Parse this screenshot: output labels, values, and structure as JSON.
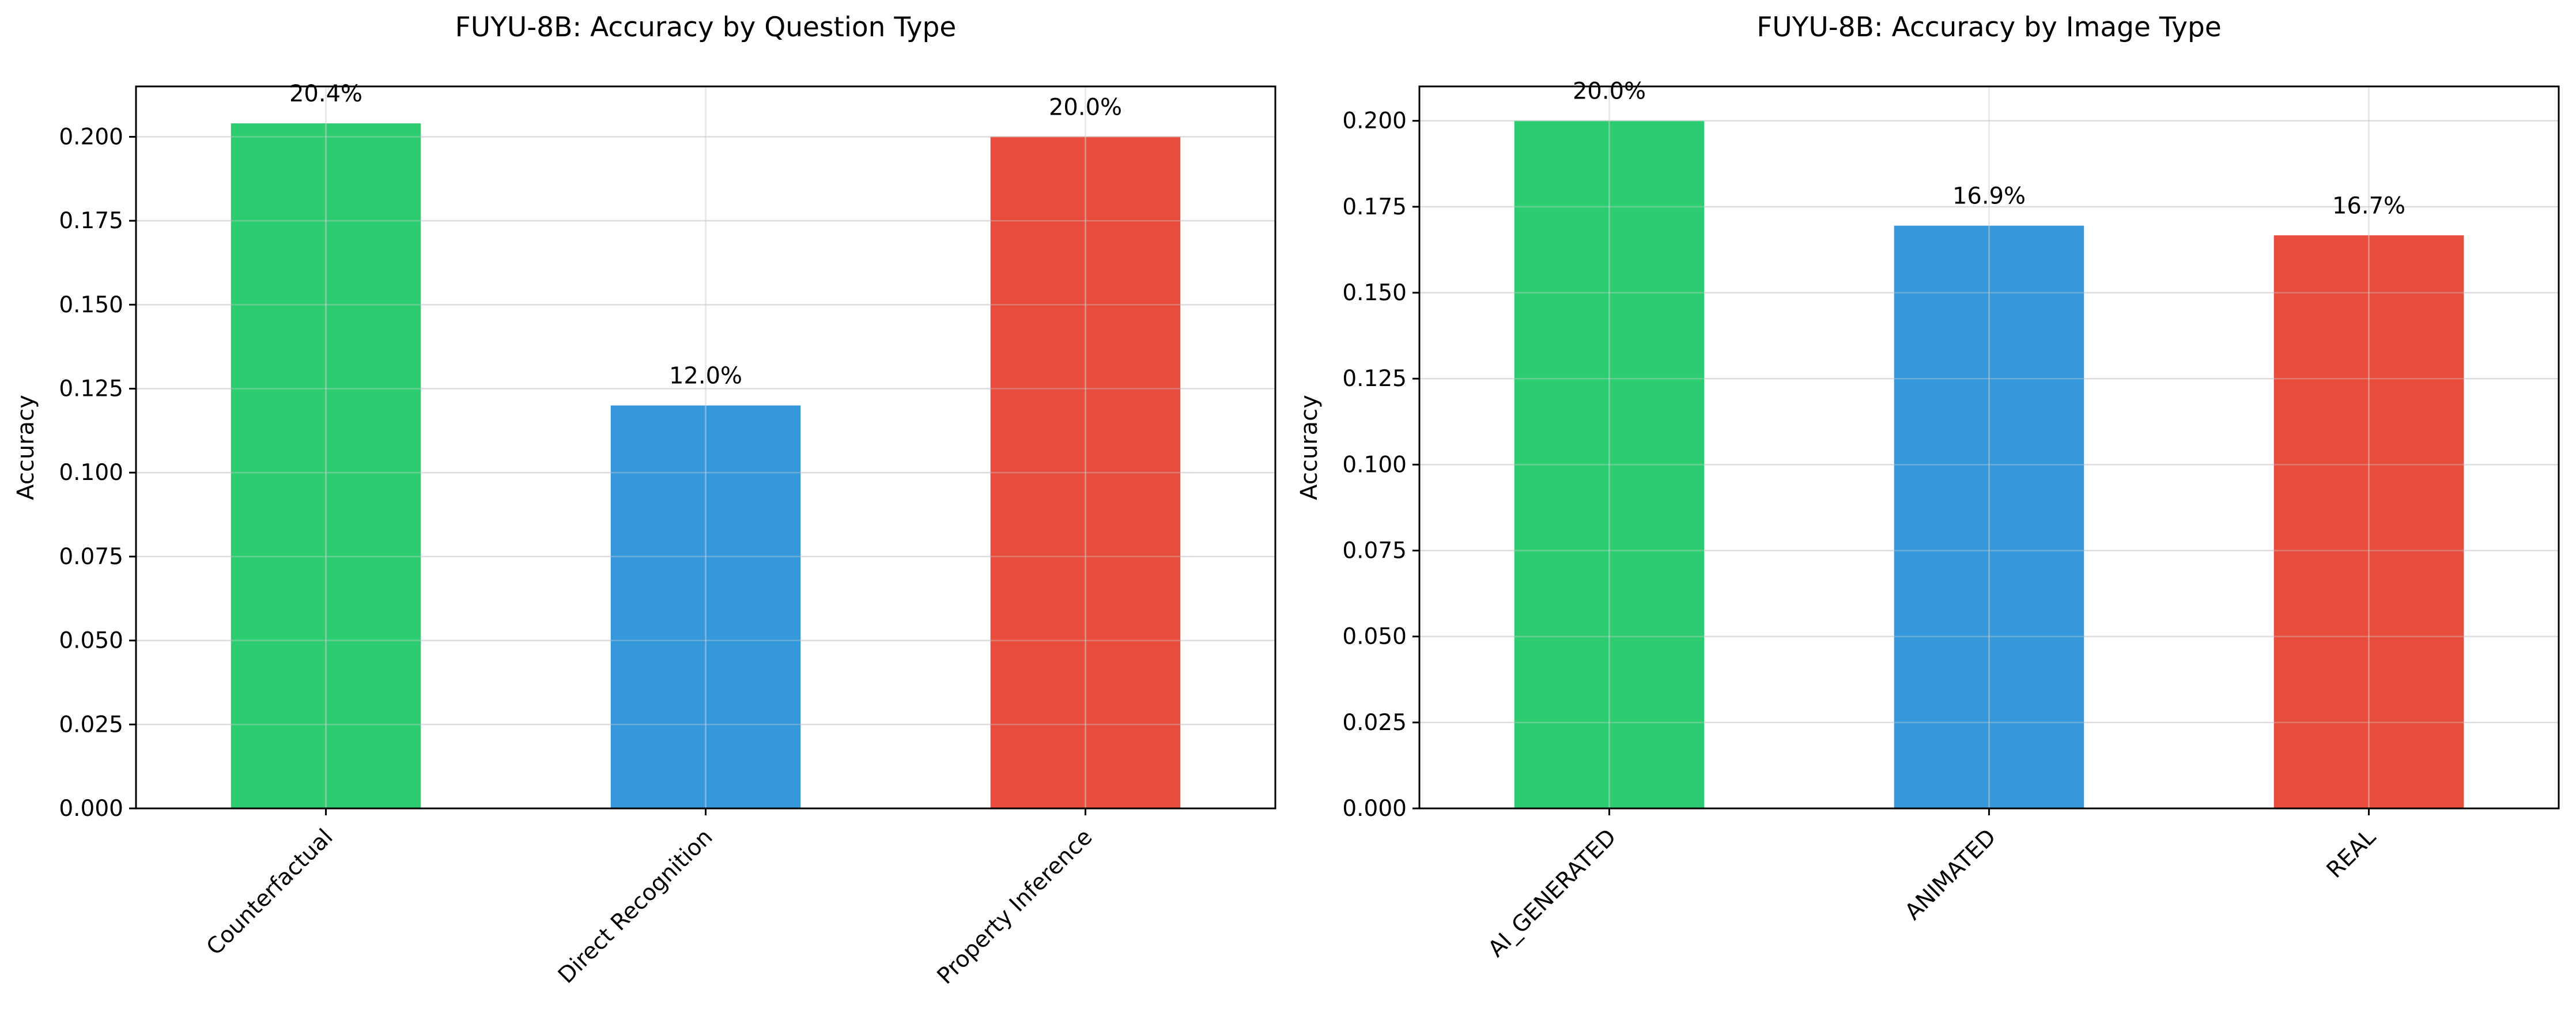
{
  "chart_data": [
    {
      "type": "bar",
      "title": "FUYU-8B: Accuracy by Question Type",
      "xlabel": "",
      "ylabel": "Accuracy",
      "categories": [
        "Counterfactual",
        "Direct Recognition",
        "Property Inference"
      ],
      "values": [
        0.204,
        0.12,
        0.2
      ],
      "data_labels": [
        "20.4%",
        "12.0%",
        "20.0%"
      ],
      "colors": [
        "#2ecc71",
        "#3498db",
        "#e74c3c"
      ],
      "ylim": [
        0,
        0.215
      ],
      "yticks": [
        0,
        0.025,
        0.05,
        0.075,
        0.1,
        0.125,
        0.15,
        0.175,
        0.2
      ],
      "ytick_labels": [
        "0.000",
        "0.025",
        "0.050",
        "0.075",
        "0.100",
        "0.125",
        "0.150",
        "0.175",
        "0.200"
      ],
      "grid": true,
      "xtick_rotation": 45
    },
    {
      "type": "bar",
      "title": "FUYU-8B: Accuracy by Image Type",
      "xlabel": "",
      "ylabel": "Accuracy",
      "categories": [
        "AI_GENERATED",
        "ANIMATED",
        "REAL"
      ],
      "values": [
        0.2,
        0.1695,
        0.1667
      ],
      "data_labels": [
        "20.0%",
        "16.9%",
        "16.7%"
      ],
      "colors": [
        "#2ecc71",
        "#3498db",
        "#e74c3c"
      ],
      "ylim": [
        0,
        0.21
      ],
      "yticks": [
        0,
        0.025,
        0.05,
        0.075,
        0.1,
        0.125,
        0.15,
        0.175,
        0.2
      ],
      "ytick_labels": [
        "0.000",
        "0.025",
        "0.050",
        "0.075",
        "0.100",
        "0.125",
        "0.150",
        "0.175",
        "0.200"
      ],
      "grid": true,
      "xtick_rotation": 45
    }
  ]
}
